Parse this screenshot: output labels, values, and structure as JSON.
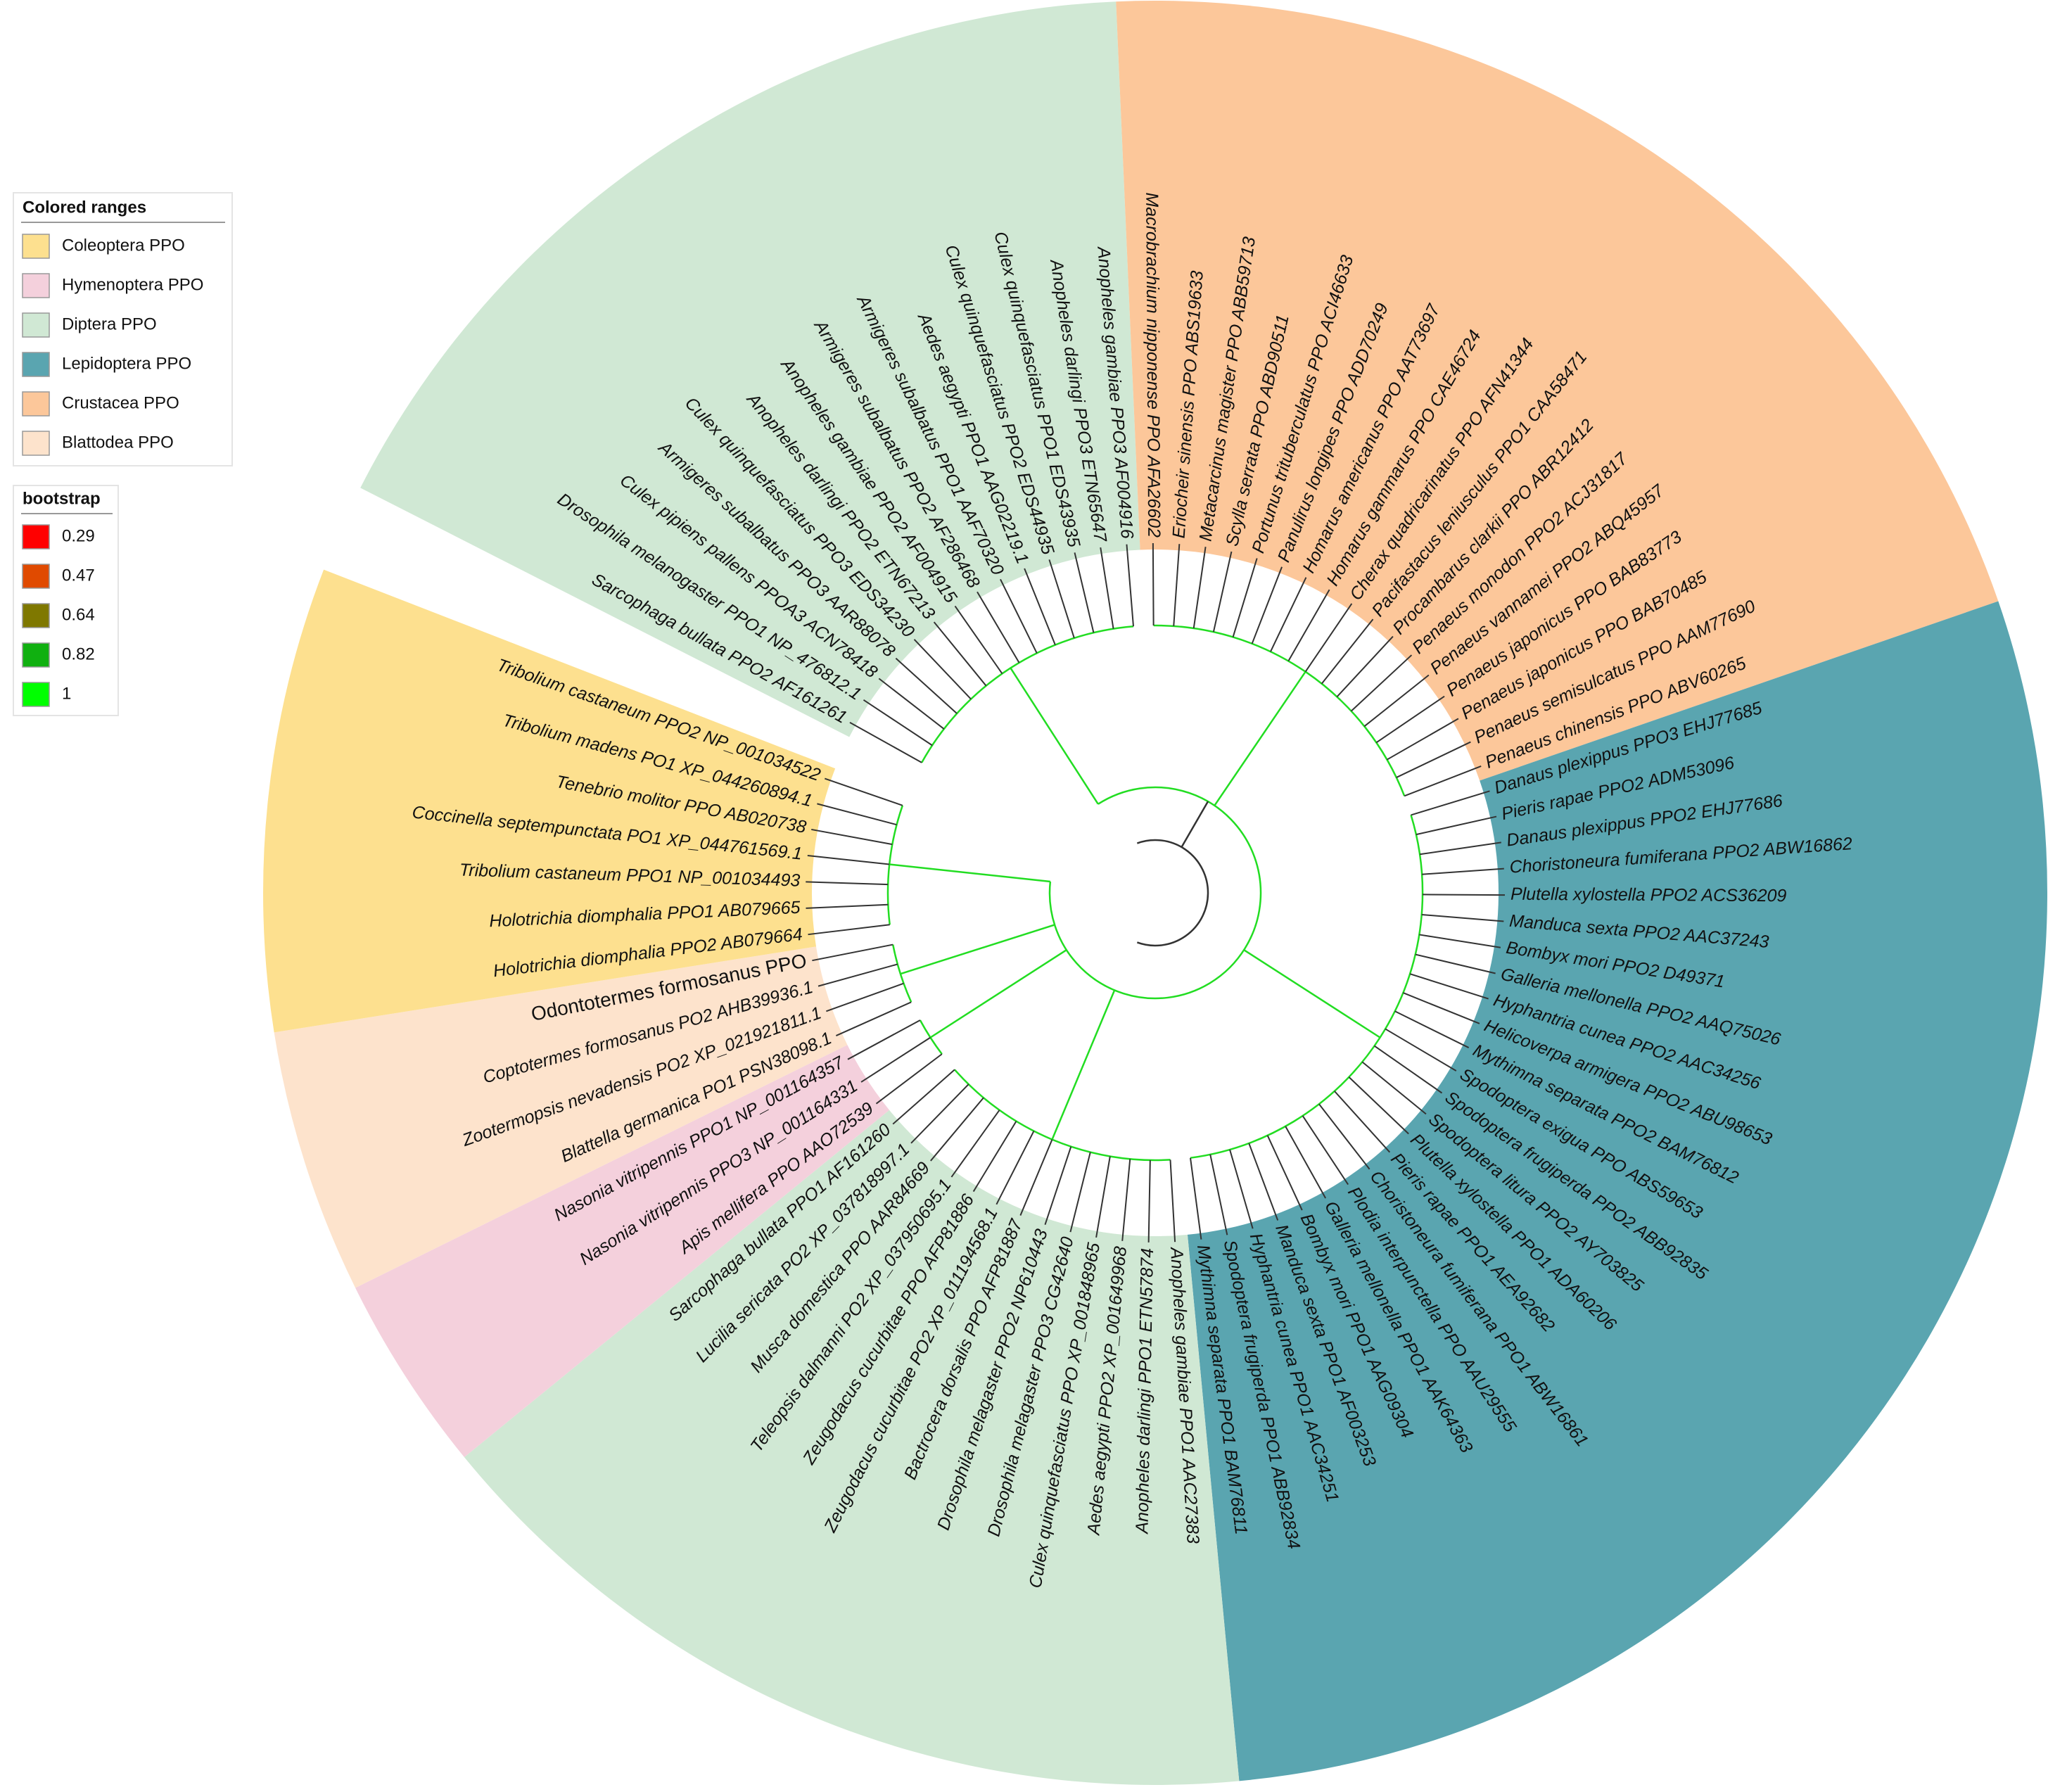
{
  "legend": {
    "title": "Colored ranges",
    "ranges": [
      {
        "label": "Coleoptera PPO",
        "color": "#fde08f"
      },
      {
        "label": "Hymenoptera PPO",
        "color": "#f4d0dc"
      },
      {
        "label": "Diptera PPO",
        "color": "#d0e8d4"
      },
      {
        "label": "Lepidoptera PPO",
        "color": "#5aa5b0"
      },
      {
        "label": "Crustacea PPO",
        "color": "#fcc79a"
      },
      {
        "label": "Blattodea PPO",
        "color": "#fde3cc"
      }
    ]
  },
  "bootstrap": {
    "title": "bootstrap",
    "items": [
      {
        "value": 0.29,
        "color": "#ff0000"
      },
      {
        "value": 0.47,
        "color": "#e04a00"
      },
      {
        "value": 0.64,
        "color": "#7f7800"
      },
      {
        "value": 0.82,
        "color": "#10b010"
      },
      {
        "value": 1,
        "color": "#00ff00"
      }
    ]
  },
  "tree": {
    "clades": [
      {
        "color": "#d0e8d4",
        "leaves": [
          {
            "label": "Sarcophaga bullata PPO2 AF161261"
          },
          {
            "label": "Drosophila melanogaster PPO1 NP_476812.1"
          },
          {
            "label": "Culex pipiens pallens PPOA3 ACN78418"
          },
          {
            "label": "Armigeres subalbatus PPO3 AAR88078"
          },
          {
            "label": "Culex quinquefasciatus PPO3 EDS34230"
          },
          {
            "label": "Anopheles darlingi PPO2 ETN67213"
          },
          {
            "label": "Anopheles gambiae PPO2 AF004915"
          },
          {
            "label": "Armigeres subalbatus PPO2 AF286468"
          },
          {
            "label": "Armigeres subalbatus PPO1 AAF70320"
          },
          {
            "label": "Aedes aegypti PPO1 AAG02219.1"
          },
          {
            "label": "Culex quinquefasciatus PPO2 EDS44935"
          },
          {
            "label": "Culex quinquefasciatus PPO1 EDS43935"
          },
          {
            "label": "Anopheles darlingi PPO3 ETN65647"
          },
          {
            "label": "Anopheles gambiae PPO3 AF004916"
          }
        ]
      },
      {
        "color": "#fcc79a",
        "leaves": [
          {
            "label": "Macrobrachium nipponense PPO AFA26602"
          },
          {
            "label": "Eriocheir sinensis PPO ABS19633"
          },
          {
            "label": "Metacarcinus magister PPO ABB59713"
          },
          {
            "label": "Scylla serrata PPO ABD90511"
          },
          {
            "label": "Portunus trituberculatus PPO ACI46633"
          },
          {
            "label": "Panulirus longipes PPO ADD70249"
          },
          {
            "label": "Homarus americanus PPO AAT73697"
          },
          {
            "label": "Homarus gammarus PPO CAE46724"
          },
          {
            "label": "Cherax quadricarinatus PPO AFN41344"
          },
          {
            "label": "Pacifastacus leniusculus PPO1 CAA58471"
          },
          {
            "label": "Procambarus clarkii PPO ABR12412"
          },
          {
            "label": "Penaeus monodon PPO2 ACJ31817"
          },
          {
            "label": "Penaeus vannamei PPO2 ABQ45957"
          },
          {
            "label": "Penaeus japonicus PPO BAB83773"
          },
          {
            "label": "Penaeus japonicus PPO BAB70485"
          },
          {
            "label": "Penaeus semisulcatus PPO AAM77690"
          },
          {
            "label": "Penaeus chinensis PPO ABV60265"
          }
        ]
      },
      {
        "color": "#5aa5b0",
        "leaves": [
          {
            "label": "Danaus plexippus PPO3 EHJ77685"
          },
          {
            "label": "Pieris rapae PPO2 ADM53096"
          },
          {
            "label": "Danaus plexippus PPO2 EHJ77686"
          },
          {
            "label": "Choristoneura fumiferana PPO2 ABW16862"
          },
          {
            "label": "Plutella xylostella PPO2 ACS36209"
          },
          {
            "label": "Manduca sexta PPO2 AAC37243"
          },
          {
            "label": "Bombyx mori PPO2 D49371"
          },
          {
            "label": "Galleria mellonella PPO2 AAQ75026"
          },
          {
            "label": "Hyphantria cunea PPO2 AAC34256"
          },
          {
            "label": "Helicoverpa armigera PPO2 ABU98653"
          },
          {
            "label": "Mythimna separata PPO2 BAM76812"
          },
          {
            "label": "Spodoptera exigua PPO ABS59653"
          },
          {
            "label": "Spodoptera frugiperda PPO2 ABB92835"
          },
          {
            "label": "Spodoptera litura PPO2 AY703825"
          },
          {
            "label": "Plutella xylostella PPO1 ADA60206"
          },
          {
            "label": "Pieris rapae PPO1 AEA92682"
          },
          {
            "label": "Choristoneura fumiferana PPO1 ABW16861"
          },
          {
            "label": "Plodia interpunctella PPO AAU29555"
          },
          {
            "label": "Galleria mellonella PPO1 AAK64363"
          },
          {
            "label": "Bombyx mori PPO1 AAG09304"
          },
          {
            "label": "Manduca sexta PPO1 AF003253"
          },
          {
            "label": "Hyphantria cunea PPO1 AAC34251"
          },
          {
            "label": "Spodoptera frugiperda PPO1 ABB92834"
          },
          {
            "label": "Mythimna separata PPO1 BAM76811"
          }
        ]
      },
      {
        "color": "#d0e8d4",
        "leaves": [
          {
            "label": "Anopheles gambiae PPO1 AAC27383"
          },
          {
            "label": "Anopheles darlingi PPO1 ETN57874"
          },
          {
            "label": "Aedes aegypti PPO2 XP_001649968"
          },
          {
            "label": "Culex quinquefasciatus PPO XP_001848965"
          },
          {
            "label": "Drosophila melagaster PPO3 CG42640"
          },
          {
            "label": "Drosophila melagaster PPO2 NP610443"
          },
          {
            "label": "Bactrocera dorsalis PPO AFP81887"
          },
          {
            "label": "Zeugodacus cucurbitae PO2 XP_011194568.1"
          },
          {
            "label": "Zeugodacus cucurbitae PPO AFP81886"
          },
          {
            "label": "Teleopsis dalmanni PO2 XP_037950695.1"
          },
          {
            "label": "Musca domestica PPO AAR84669"
          },
          {
            "label": "Lucilia sericata PO2 XP_037818997.1"
          },
          {
            "label": "Sarcophaga bullata PPO1 AF161260"
          }
        ]
      },
      {
        "color": "#f4d0dc",
        "leaves": [
          {
            "label": "Apis mellifera PPO AAO72539"
          },
          {
            "label": "Nasonia vitripennis PPO3 NP_001164331"
          },
          {
            "label": "Nasonia vitripennis PPO1 NP_001164357"
          }
        ]
      },
      {
        "color": "#fde3cc",
        "leaves": [
          {
            "label": "Blattella germanica PO1 PSN38098.1"
          },
          {
            "label": "Zootermopsis nevadensis PO2 XP_021921811.1"
          },
          {
            "label": "Coptotermes formosanus PO2 AHB39936.1"
          },
          {
            "label": "Odontotermes formosanus PPO",
            "color": "#e8372f"
          }
        ]
      },
      {
        "color": "#fde08f",
        "leaves": [
          {
            "label": "Holotrichia diomphalia PPO2 AB079664"
          },
          {
            "label": "Holotrichia diomphalia PPO1 AB079665"
          },
          {
            "label": "Tribolium castaneum PPO1 NP_001034493"
          },
          {
            "label": "Coccinella septempunctata PO1 XP_044761569.1"
          },
          {
            "label": "Tenebrio molitor PPO AB020738"
          },
          {
            "label": "Tribolium madens PO1 XP_044260894.1"
          },
          {
            "label": "Tribolium castaneum PPO2 NP_001034522"
          }
        ]
      }
    ]
  }
}
